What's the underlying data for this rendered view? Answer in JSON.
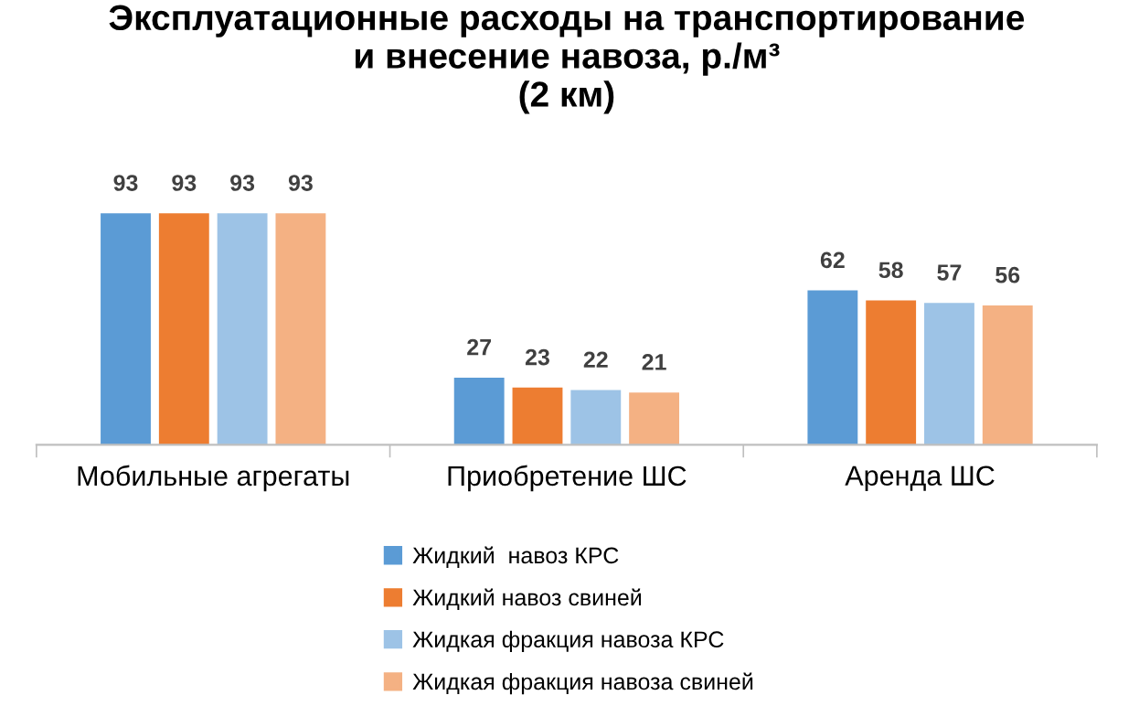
{
  "chart_data": {
    "type": "bar",
    "title": "Эксплуатационные расходы на транспортирование\nи внесение навоза, р./м³\n(2 км)",
    "categories": [
      "Мобильные агрегаты",
      "Приобретение ШС",
      "Аренда ШС"
    ],
    "series": [
      {
        "name": "Жидкий  навоз КРС",
        "color": "#5b9bd5",
        "values": [
          93,
          27,
          62
        ]
      },
      {
        "name": "Жидкий навоз свиней",
        "color": "#ed7d31",
        "values": [
          93,
          23,
          58
        ]
      },
      {
        "name": "Жидкая фракция навоза КРС",
        "color": "#9dc3e6",
        "values": [
          93,
          22,
          57
        ]
      },
      {
        "name": "Жидкая фракция навоза свиней",
        "color": "#f4b183",
        "values": [
          93,
          21,
          56
        ]
      }
    ],
    "data_labels": true,
    "legend": "bottom"
  }
}
